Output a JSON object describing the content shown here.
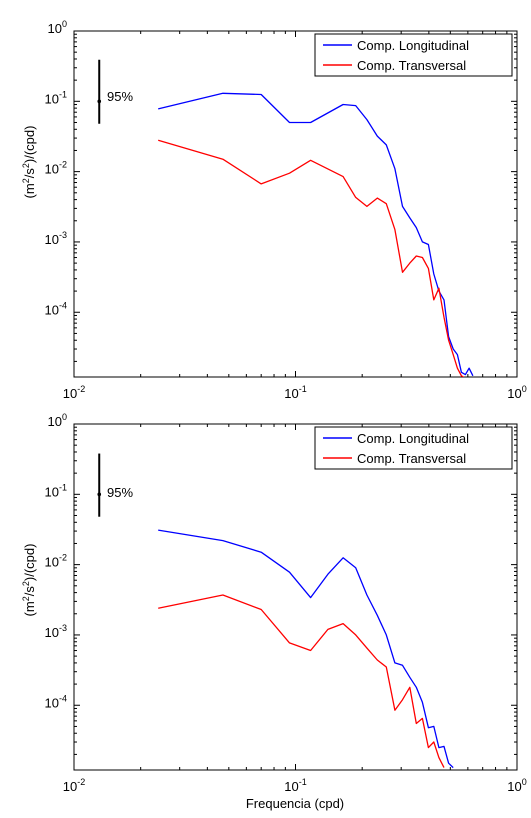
{
  "chart_data": [
    {
      "type": "line",
      "title": "",
      "xlabel": "",
      "ylabel_parts": [
        "(m",
        "2",
        "/s",
        "2",
        ")/(cpd)"
      ],
      "xscale": "log",
      "yscale": "log",
      "xlim": [
        0.01,
        1
      ],
      "ylim": [
        1.2e-05,
        1
      ],
      "xticks": [
        {
          "base": "10",
          "exp": "-2",
          "value": 0.01
        },
        {
          "base": "10",
          "exp": "-1",
          "value": 0.1
        },
        {
          "base": "10",
          "exp": "0",
          "value": 1
        }
      ],
      "yticks": [
        {
          "base": "10",
          "exp": "-4",
          "value": 0.0001
        },
        {
          "base": "10",
          "exp": "-3",
          "value": 0.001
        },
        {
          "base": "10",
          "exp": "-2",
          "value": 0.01
        },
        {
          "base": "10",
          "exp": "-1",
          "value": 0.1
        },
        {
          "base": "10",
          "exp": "0",
          "value": 1
        }
      ],
      "grid": false,
      "legend_position": "top-right",
      "confidence_label": "95%",
      "confidence_bar": {
        "x": 0.013,
        "ylow": 0.048,
        "yhigh": 0.39,
        "center": 0.1
      },
      "series": [
        {
          "name": "Comp. Longitudinal",
          "color": "#0000ff",
          "x": [
            0.024,
            0.047,
            0.07,
            0.094,
            0.117,
            0.164,
            0.187,
            0.21,
            0.234,
            0.257,
            0.281,
            0.304,
            0.328,
            0.351,
            0.374,
            0.398,
            0.421,
            0.444,
            0.468,
            0.491,
            0.515,
            0.538,
            0.561,
            0.585,
            0.608,
            0.632
          ],
          "y": [
            0.078,
            0.13,
            0.125,
            0.05,
            0.05,
            0.09,
            0.087,
            0.055,
            0.032,
            0.024,
            0.011,
            0.0032,
            0.0022,
            0.0016,
            0.001,
            0.00092,
            0.00035,
            0.0002,
            0.00015,
            4.5e-05,
            3e-05,
            2.5e-05,
            1.4e-05,
            1.3e-05,
            1.6e-05,
            1.25e-05
          ]
        },
        {
          "name": "Comp. Transversal",
          "color": "#ff0000",
          "x": [
            0.024,
            0.047,
            0.07,
            0.094,
            0.117,
            0.164,
            0.187,
            0.21,
            0.234,
            0.257,
            0.281,
            0.304,
            0.328,
            0.351,
            0.374,
            0.398,
            0.421,
            0.444,
            0.468,
            0.491,
            0.515,
            0.538,
            0.561,
            0.585
          ],
          "y": [
            0.028,
            0.015,
            0.0067,
            0.0095,
            0.0145,
            0.0085,
            0.0043,
            0.0032,
            0.0042,
            0.0035,
            0.0015,
            0.00037,
            0.0005,
            0.00063,
            0.0006,
            0.00042,
            0.00015,
            0.00022,
            8.5e-05,
            4e-05,
            2.5e-05,
            1.6e-05,
            1.25e-05,
            1.15e-05
          ]
        }
      ]
    },
    {
      "type": "line",
      "title": "",
      "xlabel": "Frequencia (cpd)",
      "ylabel_parts": [
        "(m",
        "2",
        "/s",
        "2",
        ")/(cpd)"
      ],
      "xscale": "log",
      "yscale": "log",
      "xlim": [
        0.01,
        1
      ],
      "ylim": [
        1.2e-05,
        1
      ],
      "xticks": [
        {
          "base": "10",
          "exp": "-2",
          "value": 0.01
        },
        {
          "base": "10",
          "exp": "-1",
          "value": 0.1
        },
        {
          "base": "10",
          "exp": "0",
          "value": 1
        }
      ],
      "yticks": [
        {
          "base": "10",
          "exp": "-4",
          "value": 0.0001
        },
        {
          "base": "10",
          "exp": "-3",
          "value": 0.001
        },
        {
          "base": "10",
          "exp": "-2",
          "value": 0.01
        },
        {
          "base": "10",
          "exp": "-1",
          "value": 0.1
        },
        {
          "base": "10",
          "exp": "0",
          "value": 1
        }
      ],
      "grid": false,
      "legend_position": "top-right",
      "confidence_label": "95%",
      "confidence_bar": {
        "x": 0.013,
        "ylow": 0.048,
        "yhigh": 0.38,
        "center": 0.1
      },
      "series": [
        {
          "name": "Comp. Longitudinal",
          "color": "#0000ff",
          "x": [
            0.024,
            0.047,
            0.07,
            0.094,
            0.117,
            0.14,
            0.164,
            0.187,
            0.21,
            0.234,
            0.257,
            0.281,
            0.304,
            0.328,
            0.351,
            0.374,
            0.398,
            0.421,
            0.444,
            0.468,
            0.491,
            0.515
          ],
          "y": [
            0.031,
            0.022,
            0.015,
            0.0078,
            0.0034,
            0.0073,
            0.0125,
            0.009,
            0.0037,
            0.0019,
            0.001,
            0.0004,
            0.00037,
            0.00025,
            0.00018,
            0.00011,
            4.8e-05,
            5e-05,
            2.5e-05,
            2.6e-05,
            1.5e-05,
            1.3e-05
          ]
        },
        {
          "name": "Comp. Transversal",
          "color": "#ff0000",
          "x": [
            0.024,
            0.047,
            0.07,
            0.094,
            0.117,
            0.14,
            0.164,
            0.187,
            0.21,
            0.234,
            0.257,
            0.281,
            0.304,
            0.328,
            0.351,
            0.374,
            0.398,
            0.421,
            0.444,
            0.468
          ],
          "y": [
            0.0024,
            0.0037,
            0.0023,
            0.00077,
            0.0006,
            0.0012,
            0.00145,
            0.001,
            0.00065,
            0.00044,
            0.00035,
            8.5e-05,
            0.00012,
            0.00018,
            5.5e-05,
            6.5e-05,
            2.5e-05,
            3e-05,
            1.8e-05,
            1.3e-05
          ]
        }
      ]
    }
  ]
}
